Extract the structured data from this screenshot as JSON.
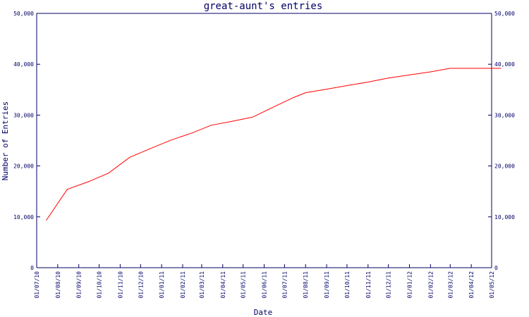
{
  "chart_data": {
    "type": "line",
    "title": "great-aunt's entries",
    "xlabel": "Date",
    "ylabel": "Number of Entries",
    "ylim": [
      0,
      50000
    ],
    "y_ticks": [
      0,
      10000,
      20000,
      30000,
      40000,
      50000
    ],
    "y_tick_labels": [
      "0",
      "10,000",
      "20,000",
      "30,000",
      "40,000",
      "50,000"
    ],
    "right_axis_mirrors_left": true,
    "grid": false,
    "xlim": [
      "2010-07-01",
      "2012-05-01"
    ],
    "x_ticks": [
      "2010-07-01",
      "2010-08-01",
      "2010-09-01",
      "2010-10-01",
      "2010-11-01",
      "2010-12-01",
      "2011-01-01",
      "2011-02-01",
      "2011-03-01",
      "2011-04-01",
      "2011-05-01",
      "2011-06-01",
      "2011-07-01",
      "2011-08-01",
      "2011-09-01",
      "2011-10-01",
      "2011-11-01",
      "2011-12-01",
      "2012-01-01",
      "2012-02-01",
      "2012-03-01",
      "2012-04-01",
      "2012-05-01"
    ],
    "x_tick_labels": [
      "01/07/10",
      "01/08/10",
      "01/09/10",
      "01/10/10",
      "01/11/10",
      "01/12/10",
      "01/01/11",
      "01/02/11",
      "01/03/11",
      "01/04/11",
      "01/05/11",
      "01/06/11",
      "01/07/11",
      "01/08/11",
      "01/09/11",
      "01/10/11",
      "01/11/11",
      "01/12/11",
      "01/01/12",
      "01/02/12",
      "01/03/12",
      "01/04/12",
      "01/05/12"
    ],
    "series": [
      {
        "color": "#ff0000",
        "points": [
          {
            "x": "2010-07-15",
            "y": 9300
          },
          {
            "x": "2010-08-15",
            "y": 15400
          },
          {
            "x": "2010-09-15",
            "y": 16900
          },
          {
            "x": "2010-10-15",
            "y": 18600
          },
          {
            "x": "2010-11-15",
            "y": 21700
          },
          {
            "x": "2010-12-15",
            "y": 23400
          },
          {
            "x": "2011-01-15",
            "y": 25100
          },
          {
            "x": "2011-02-15",
            "y": 26500
          },
          {
            "x": "2011-03-15",
            "y": 28000
          },
          {
            "x": "2011-04-15",
            "y": 28800
          },
          {
            "x": "2011-05-15",
            "y": 29600
          },
          {
            "x": "2011-06-15",
            "y": 31600
          },
          {
            "x": "2011-07-15",
            "y": 33500
          },
          {
            "x": "2011-08-01",
            "y": 34400
          },
          {
            "x": "2011-09-01",
            "y": 35100
          },
          {
            "x": "2011-10-01",
            "y": 35800
          },
          {
            "x": "2011-11-01",
            "y": 36500
          },
          {
            "x": "2011-12-01",
            "y": 37300
          },
          {
            "x": "2012-01-01",
            "y": 37900
          },
          {
            "x": "2012-02-01",
            "y": 38500
          },
          {
            "x": "2012-03-01",
            "y": 39200
          },
          {
            "x": "2012-04-01",
            "y": 39200
          },
          {
            "x": "2012-05-01",
            "y": 39200
          },
          {
            "x": "2012-05-15",
            "y": 39200
          }
        ]
      }
    ],
    "colors": {
      "axis": "#000066",
      "line": "#ff0000",
      "background": "#ffffff"
    }
  }
}
